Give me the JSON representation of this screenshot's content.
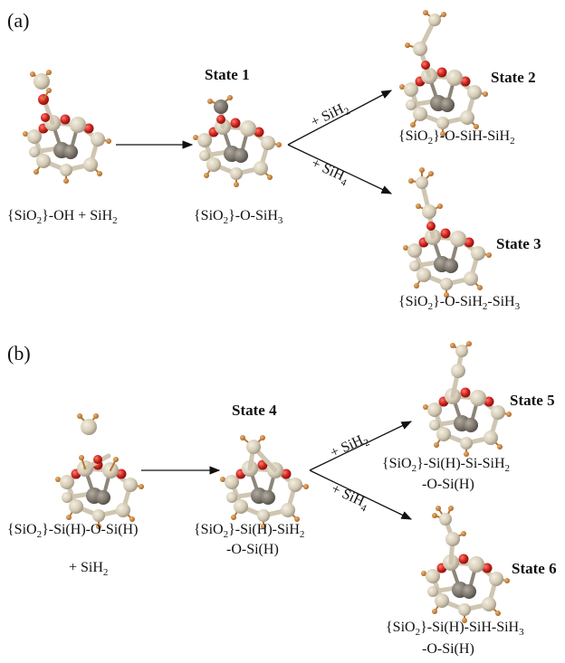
{
  "panels": {
    "a": {
      "label": "(a)"
    },
    "b": {
      "label": "(b)"
    }
  },
  "states": {
    "s1": "State 1",
    "s2": "State 2",
    "s3": "State 3",
    "s4": "State 4",
    "s5": "State 5",
    "s6": "State 6"
  },
  "formulas": {
    "a_reactant": {
      "pre": "{SiO",
      "sub1": "2",
      "mid": "}-OH + SiH",
      "sub2": "2"
    },
    "s1": {
      "pre": "{SiO",
      "sub1": "2",
      "mid": "}-O-SiH",
      "sub2": "3"
    },
    "s2": {
      "pre": "{SiO",
      "sub1": "2",
      "mid": "}-O-SiH-SiH",
      "sub2": "2"
    },
    "s3": {
      "pre": "{SiO",
      "sub1": "2",
      "mid": "}-O-SiH",
      "sub2": "2",
      "mid2": "-SiH",
      "sub3": "3"
    },
    "b_reactant": {
      "pre": "{SiO",
      "sub1": "2",
      "mid": "}-Si(H)-O-Si(H)",
      "line2_pre": "+ SiH",
      "line2_sub": "2"
    },
    "s4": {
      "pre": "{SiO",
      "sub1": "2",
      "mid": "}-Si(H)-SiH",
      "sub2": "2",
      "line2": "-O-Si(H)"
    },
    "s5": {
      "pre": "{SiO",
      "sub1": "2",
      "mid": "}-Si(H)-Si-SiH",
      "sub2": "2",
      "line2": "-O-Si(H)"
    },
    "s6": {
      "pre": "{SiO",
      "sub1": "2",
      "mid": "}-Si(H)-SiH-SiH",
      "sub2": "3",
      "line2": "-O-Si(H)"
    }
  },
  "arrows": {
    "a_up": {
      "pre": "+ SiH",
      "sub": "2"
    },
    "a_down": {
      "pre": "+ SiH",
      "sub": "4"
    },
    "b_up": {
      "pre": "+ SiH",
      "sub": "2"
    },
    "b_down": {
      "pre": "+ SiH",
      "sub": "4"
    }
  },
  "atom_colors": {
    "Si_light": "#d8d0bc",
    "Si_dark": "#7e786e",
    "O": "#c9211e",
    "H": "#c07a30"
  }
}
